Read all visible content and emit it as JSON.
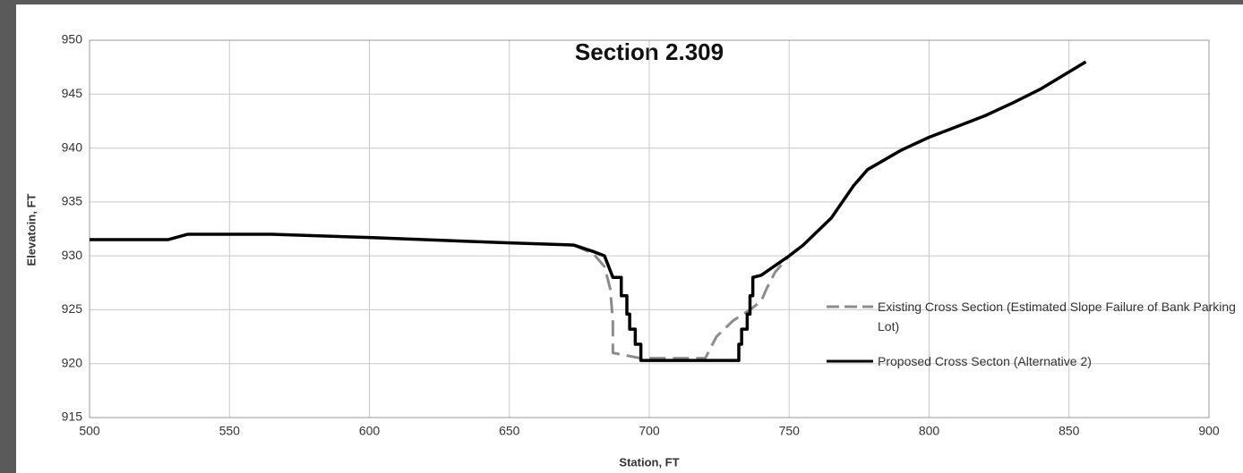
{
  "chart_data": {
    "type": "line",
    "title": "Section 2.309",
    "x_label": "Station, FT",
    "y_label": "Elevatoin, FT",
    "xlim": [
      500,
      900
    ],
    "xticks": [
      500,
      550,
      600,
      650,
      700,
      750,
      800,
      850,
      900
    ],
    "ylim": [
      915,
      950
    ],
    "yticks": [
      915,
      920,
      925,
      930,
      935,
      940,
      945,
      950
    ],
    "grid": true,
    "series": [
      {
        "name": "Existing Cross Section (Estimated Slope Failure of Bank Parking Lot)",
        "color": "#8c8c8c",
        "dashed": true,
        "x": [
          673,
          680,
          684,
          686,
          687,
          687,
          697,
          720,
          724,
          730,
          736,
          740,
          742,
          745,
          750
        ],
        "values": [
          931,
          930.2,
          929,
          927,
          924,
          921,
          920.5,
          920.5,
          922.5,
          924,
          925,
          925.8,
          927,
          928.5,
          930
        ]
      },
      {
        "name": "Proposed Cross Secton (Alternative 2)",
        "color": "#000000",
        "dashed": false,
        "x": [
          500,
          528,
          535,
          565,
          600,
          650,
          673,
          680,
          684,
          687,
          690,
          690,
          692,
          692,
          693,
          693,
          695,
          695,
          697,
          697,
          732,
          732,
          733,
          733,
          735,
          735,
          736,
          736,
          737,
          737,
          740,
          750,
          755,
          765,
          773,
          778,
          790,
          800,
          810,
          820,
          830,
          840,
          856
        ],
        "values": [
          931.5,
          931.5,
          932,
          932,
          931.7,
          931.2,
          931,
          930.4,
          930,
          928,
          928,
          926.3,
          926.3,
          924.6,
          924.6,
          923.2,
          923.2,
          921.8,
          921.8,
          920.3,
          920.3,
          921.8,
          921.8,
          923.2,
          923.2,
          924.6,
          924.6,
          926.3,
          926.3,
          928,
          928.2,
          930,
          931,
          933.5,
          936.5,
          938,
          939.8,
          941,
          942,
          943,
          944.2,
          945.5,
          948
        ]
      }
    ]
  }
}
